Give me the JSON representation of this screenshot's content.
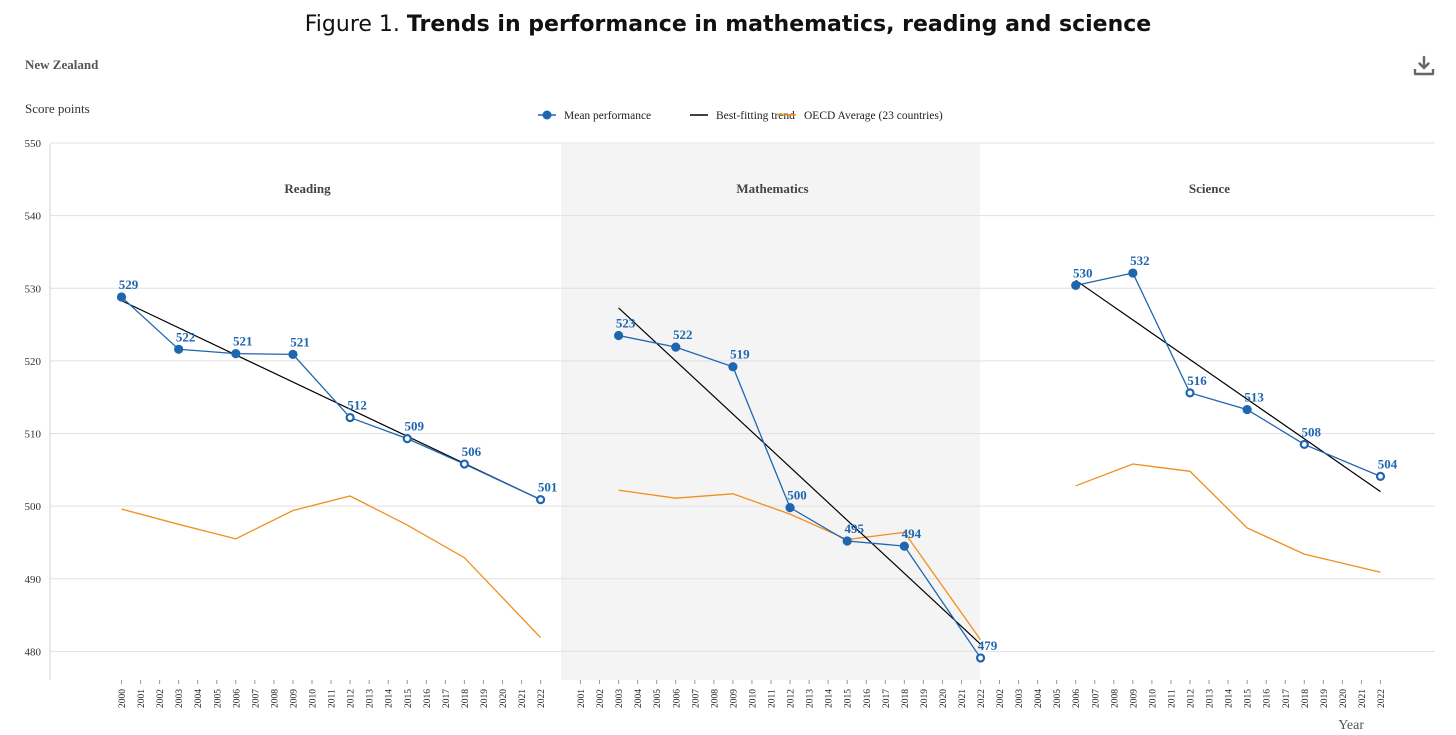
{
  "header": {
    "figure_prefix": "Figure 1.",
    "figure_title": "Trends in performance in mathematics, reading and science",
    "country": "New Zealand",
    "download_icon": "download-icon"
  },
  "colors": {
    "mean": "#1f66b0",
    "trend": "#000000",
    "oecd": "#f28e1c",
    "grid": "#e0e0e0",
    "panel_shade": "#f4f4f4"
  },
  "chart_data": {
    "type": "line",
    "title": "Trends in performance in mathematics, reading and science",
    "ylabel": "Score points",
    "xlabel": "Year",
    "ylim": [
      476,
      550
    ],
    "yticks": [
      480,
      490,
      500,
      510,
      520,
      530,
      540,
      550
    ],
    "legend": {
      "placement": "top-center",
      "items": [
        {
          "key": "mean",
          "label": "Mean performance"
        },
        {
          "key": "trend",
          "label": "Best-fitting trend"
        },
        {
          "key": "oecd",
          "label": "OECD Average (23 countries)"
        }
      ]
    },
    "panels": [
      {
        "name": "Reading",
        "shaded": false,
        "x_ticks": [
          2000,
          2001,
          2002,
          2003,
          2004,
          2005,
          2006,
          2007,
          2008,
          2009,
          2010,
          2011,
          2012,
          2013,
          2014,
          2015,
          2016,
          2017,
          2018,
          2019,
          2020,
          2021,
          2022
        ],
        "x_range": [
          2000,
          2022
        ],
        "mean_performance": [
          {
            "year": 2000,
            "value": 528.8,
            "label": "529",
            "filled": true
          },
          {
            "year": 2003,
            "value": 521.6,
            "label": "522",
            "filled": true
          },
          {
            "year": 2006,
            "value": 521.0,
            "label": "521",
            "filled": true
          },
          {
            "year": 2009,
            "value": 520.9,
            "label": "521",
            "filled": true
          },
          {
            "year": 2012,
            "value": 512.2,
            "label": "512",
            "filled": false
          },
          {
            "year": 2015,
            "value": 509.3,
            "label": "509",
            "filled": false
          },
          {
            "year": 2018,
            "value": 505.8,
            "label": "506",
            "filled": false
          },
          {
            "year": 2022,
            "value": 500.9,
            "label": "501",
            "filled": false
          }
        ],
        "trend": [
          {
            "year": 2000,
            "value": 528.3
          },
          {
            "year": 2022,
            "value": 500.9
          }
        ],
        "oecd": [
          {
            "year": 2000,
            "value": 499.6
          },
          {
            "year": 2003,
            "value": 497.5
          },
          {
            "year": 2006,
            "value": 495.5
          },
          {
            "year": 2009,
            "value": 499.4
          },
          {
            "year": 2012,
            "value": 501.4
          },
          {
            "year": 2015,
            "value": 497.4
          },
          {
            "year": 2018,
            "value": 492.9
          },
          {
            "year": 2022,
            "value": 481.9
          }
        ]
      },
      {
        "name": "Mathematics",
        "shaded": true,
        "x_ticks": [
          2001,
          2002,
          2003,
          2004,
          2005,
          2006,
          2007,
          2008,
          2009,
          2010,
          2011,
          2012,
          2013,
          2014,
          2015,
          2016,
          2017,
          2018,
          2019,
          2020,
          2021,
          2022
        ],
        "x_range": [
          2001,
          2022
        ],
        "mean_performance": [
          {
            "year": 2003,
            "value": 523.5,
            "label": "523",
            "filled": true
          },
          {
            "year": 2006,
            "value": 521.9,
            "label": "522",
            "filled": true
          },
          {
            "year": 2009,
            "value": 519.2,
            "label": "519",
            "filled": true
          },
          {
            "year": 2012,
            "value": 499.8,
            "label": "500",
            "filled": true
          },
          {
            "year": 2015,
            "value": 495.2,
            "label": "495",
            "filled": true
          },
          {
            "year": 2018,
            "value": 494.5,
            "label": "494",
            "filled": true
          },
          {
            "year": 2022,
            "value": 479.1,
            "label": "479",
            "filled": false
          }
        ],
        "trend": [
          {
            "year": 2003,
            "value": 527.3
          },
          {
            "year": 2022,
            "value": 481.0
          }
        ],
        "oecd": [
          {
            "year": 2003,
            "value": 502.2
          },
          {
            "year": 2006,
            "value": 501.1
          },
          {
            "year": 2009,
            "value": 501.7
          },
          {
            "year": 2012,
            "value": 498.9
          },
          {
            "year": 2015,
            "value": 495.4
          },
          {
            "year": 2018,
            "value": 496.4
          },
          {
            "year": 2022,
            "value": 481.6
          }
        ]
      },
      {
        "name": "Science",
        "shaded": false,
        "x_ticks": [
          2002,
          2003,
          2004,
          2005,
          2006,
          2007,
          2008,
          2009,
          2010,
          2011,
          2012,
          2013,
          2014,
          2015,
          2016,
          2017,
          2018,
          2019,
          2020,
          2021,
          2022
        ],
        "x_range": [
          2002,
          2022
        ],
        "mean_performance": [
          {
            "year": 2006,
            "value": 530.4,
            "label": "530",
            "filled": true
          },
          {
            "year": 2009,
            "value": 532.1,
            "label": "532",
            "filled": true
          },
          {
            "year": 2012,
            "value": 515.6,
            "label": "516",
            "filled": false
          },
          {
            "year": 2015,
            "value": 513.3,
            "label": "513",
            "filled": true
          },
          {
            "year": 2018,
            "value": 508.5,
            "label": "508",
            "filled": false
          },
          {
            "year": 2022,
            "value": 504.1,
            "label": "504",
            "filled": false
          }
        ],
        "trend": [
          {
            "year": 2006,
            "value": 531.1
          },
          {
            "year": 2022,
            "value": 502.0
          }
        ],
        "oecd": [
          {
            "year": 2006,
            "value": 502.8
          },
          {
            "year": 2009,
            "value": 505.8
          },
          {
            "year": 2012,
            "value": 504.8
          },
          {
            "year": 2015,
            "value": 497.0
          },
          {
            "year": 2018,
            "value": 493.4
          },
          {
            "year": 2022,
            "value": 490.9
          }
        ]
      }
    ]
  }
}
